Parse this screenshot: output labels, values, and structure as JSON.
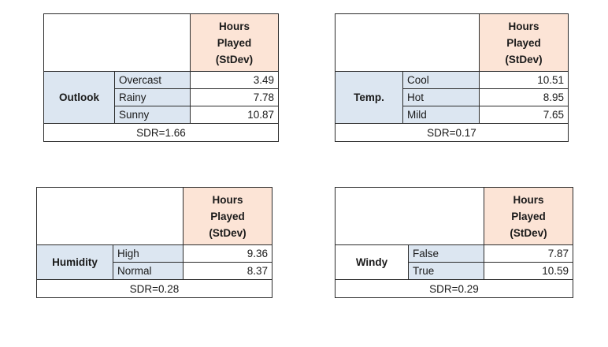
{
  "header_lines": [
    "Hours",
    "Played",
    "(StDev)"
  ],
  "tables": {
    "outlook": {
      "attribute": "Outlook",
      "rows": [
        {
          "category": "Overcast",
          "value": "3.49"
        },
        {
          "category": "Rainy",
          "value": "7.78"
        },
        {
          "category": "Sunny",
          "value": "10.87"
        }
      ],
      "sdr": "SDR=1.66"
    },
    "temp": {
      "attribute": "Temp.",
      "rows": [
        {
          "category": "Cool",
          "value": "10.51"
        },
        {
          "category": "Hot",
          "value": "8.95"
        },
        {
          "category": "Mild",
          "value": "7.65"
        }
      ],
      "sdr": "SDR=0.17"
    },
    "humidity": {
      "attribute": "Humidity",
      "rows": [
        {
          "category": "High",
          "value": "9.36"
        },
        {
          "category": "Normal",
          "value": "8.37"
        }
      ],
      "sdr": "SDR=0.28"
    },
    "windy": {
      "attribute": "Windy",
      "rows": [
        {
          "category": "False",
          "value": "7.87"
        },
        {
          "category": "True",
          "value": "10.59"
        }
      ],
      "sdr": "SDR=0.29"
    }
  },
  "colors": {
    "header_fill": "#fce4d6",
    "attribute_fill": "#dce6f1",
    "border": "#2b2b2b"
  }
}
